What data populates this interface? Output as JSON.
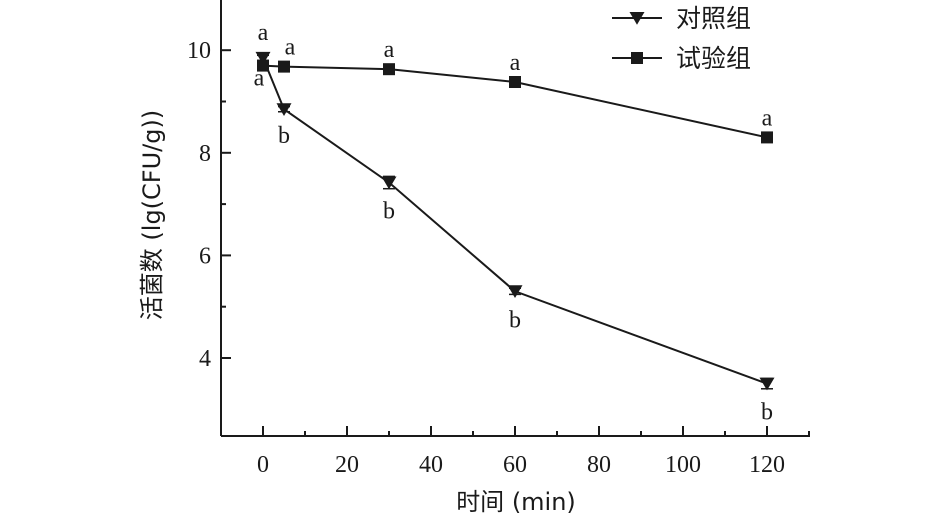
{
  "chart_data": {
    "type": "line",
    "xlabel": "时间 (min)",
    "ylabel": "活菌数 (lg(CFU/g))",
    "xlim": [
      -10,
      130
    ],
    "ylim": [
      3.5,
      11
    ],
    "xticks": [
      0,
      20,
      40,
      60,
      80,
      100,
      120
    ],
    "yticks": [
      4,
      6,
      8,
      10
    ],
    "grid": false,
    "legend_position": "top-right",
    "series": [
      {
        "name": "对照组",
        "marker": "triangle-down",
        "color": "#1a1a1a",
        "x": [
          0,
          5,
          30,
          60,
          120
        ],
        "y": [
          9.85,
          8.85,
          7.42,
          5.3,
          3.5
        ],
        "error": [
          0.05,
          0.05,
          0.12,
          0.06,
          0.1
        ],
        "labels": [
          "a",
          "b",
          "b",
          "b",
          "b"
        ]
      },
      {
        "name": "试验组",
        "marker": "square",
        "color": "#1a1a1a",
        "x": [
          0,
          5,
          30,
          60,
          120
        ],
        "y": [
          9.7,
          9.68,
          9.63,
          9.38,
          8.3
        ],
        "error": [
          0.03,
          0.03,
          0.03,
          0.04,
          0.04
        ],
        "labels": [
          "a",
          "a",
          "a",
          "a",
          "a"
        ]
      }
    ]
  }
}
